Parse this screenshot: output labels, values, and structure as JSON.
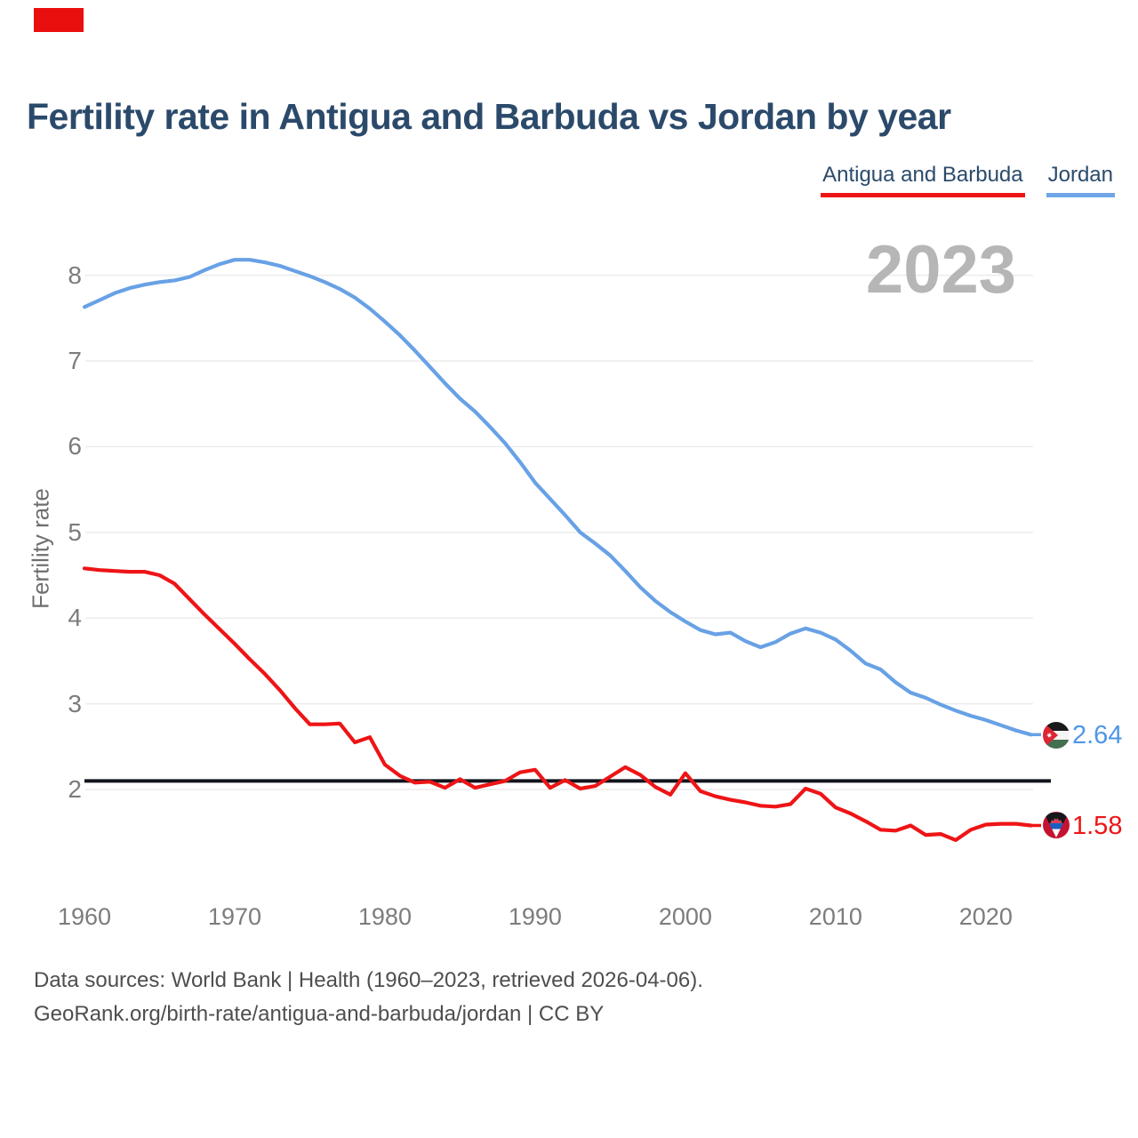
{
  "marker_color": "#ea0f0f",
  "title": "Fertility rate in Antigua and Barbuda vs Jordan by year",
  "watermark_year": "2023",
  "legend": [
    {
      "label": "Antigua and Barbuda",
      "color": "#ee1416"
    },
    {
      "label": "Jordan",
      "color": "#6fa6e6"
    }
  ],
  "value_labels": [
    {
      "series": "Jordan",
      "text": "2.64",
      "color": "#4f96e8"
    },
    {
      "series": "Antigua and Barbuda",
      "text": "1.58",
      "color": "#ee1416"
    }
  ],
  "footer": {
    "line1": "Data sources: World Bank | Health (1960–2023, retrieved 2026-04-06).",
    "line2": "GeoRank.org/birth-rate/antigua-and-barbuda/jordan | CC BY"
  },
  "chart_data": {
    "type": "line",
    "title": "Fertility rate in Antigua and Barbuda vs Jordan by year",
    "xlabel": "",
    "ylabel": "Fertility rate",
    "x_range": [
      1960,
      2023
    ],
    "x_ticks": [
      1960,
      1970,
      1980,
      1990,
      2000,
      2010,
      2020
    ],
    "y_ticks": [
      2,
      3,
      4,
      5,
      6,
      7,
      8
    ],
    "ylim": [
      1.3,
      8.6
    ],
    "grid": "horizontal",
    "legend_position": "top-right",
    "reference_line": {
      "value": 2.1,
      "color": "#12151d"
    },
    "gridline_color": "#ececec",
    "series": [
      {
        "name": "Antigua and Barbuda",
        "color": "#ee1416",
        "end_label": "1.58",
        "values": [
          4.58,
          4.56,
          4.55,
          4.54,
          4.54,
          4.5,
          4.4,
          4.22,
          4.04,
          3.87,
          3.7,
          3.52,
          3.35,
          3.16,
          2.95,
          2.76,
          2.76,
          2.77,
          2.55,
          2.61,
          2.29,
          2.16,
          2.08,
          2.09,
          2.02,
          2.12,
          2.02,
          2.06,
          2.1,
          2.2,
          2.23,
          2.02,
          2.11,
          2.01,
          2.04,
          2.15,
          2.26,
          2.17,
          2.03,
          1.94,
          2.19,
          1.98,
          1.92,
          1.88,
          1.85,
          1.81,
          1.8,
          1.83,
          2.01,
          1.95,
          1.79,
          1.72,
          1.63,
          1.53,
          1.52,
          1.58,
          1.47,
          1.48,
          1.41,
          1.53,
          1.59,
          1.6,
          1.6,
          1.58
        ]
      },
      {
        "name": "Jordan",
        "color": "#68a1e5",
        "end_label": "2.64",
        "values": [
          7.63,
          7.71,
          7.79,
          7.85,
          7.89,
          7.92,
          7.94,
          7.98,
          8.06,
          8.13,
          8.18,
          8.18,
          8.15,
          8.11,
          8.05,
          7.99,
          7.92,
          7.84,
          7.74,
          7.61,
          7.46,
          7.3,
          7.12,
          6.93,
          6.74,
          6.56,
          6.41,
          6.23,
          6.04,
          5.82,
          5.58,
          5.39,
          5.2,
          5.0,
          4.87,
          4.73,
          4.55,
          4.36,
          4.2,
          4.07,
          3.96,
          3.86,
          3.81,
          3.83,
          3.73,
          3.66,
          3.72,
          3.82,
          3.88,
          3.83,
          3.75,
          3.62,
          3.47,
          3.4,
          3.25,
          3.13,
          3.07,
          2.99,
          2.92,
          2.86,
          2.81,
          2.75,
          2.69,
          2.64
        ]
      }
    ]
  }
}
